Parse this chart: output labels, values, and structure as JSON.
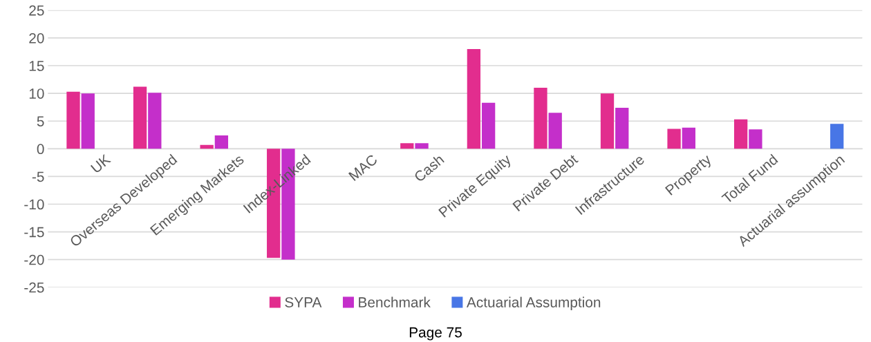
{
  "chart_data": {
    "type": "bar",
    "categories": [
      "UK",
      "Overseas Developed",
      "Emerging Markets",
      "Index-Linked",
      "MAC",
      "Cash",
      "Private Equity",
      "Private Debt",
      "Infrastructure",
      "Property",
      "Total Fund",
      "Actuarial assumption"
    ],
    "series": [
      {
        "name": "SYPA",
        "color": "#e22d8e",
        "values": [
          10.3,
          11.2,
          0.7,
          -19.7,
          null,
          1.0,
          18.0,
          11.0,
          10.0,
          3.6,
          5.3,
          null
        ]
      },
      {
        "name": "Benchmark",
        "color": "#c42fca",
        "values": [
          10.0,
          10.1,
          2.4,
          -20.0,
          null,
          1.0,
          8.3,
          6.5,
          7.4,
          3.8,
          3.5,
          null
        ]
      },
      {
        "name": "Actuarial Assumption",
        "color": "#4876e6",
        "values": [
          null,
          null,
          null,
          null,
          null,
          null,
          null,
          null,
          null,
          null,
          null,
          4.5
        ]
      }
    ],
    "ylim": [
      -25,
      25
    ],
    "yticks": [
      -25,
      -20,
      -15,
      -10,
      -5,
      0,
      5,
      10,
      15,
      20,
      25
    ],
    "grid": "y",
    "legend": "bottom",
    "annotations": [
      "Page 75"
    ]
  }
}
